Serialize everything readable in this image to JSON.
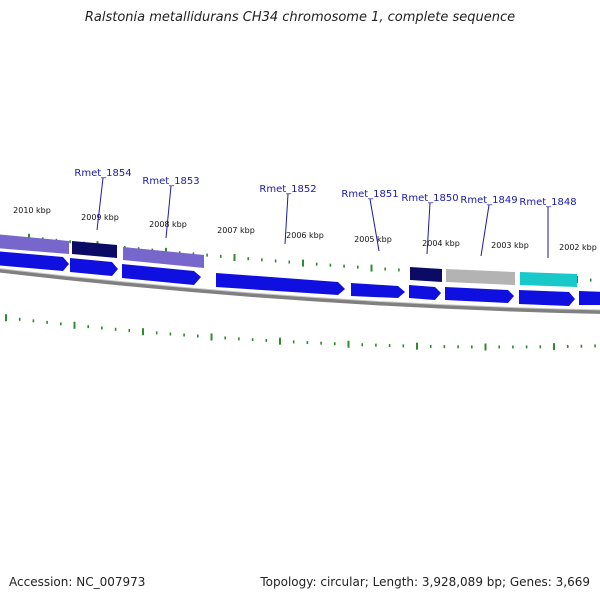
{
  "title": "Ralstonia metallidurans CH34 chromosome 1, complete sequence",
  "footer": {
    "accession": "Accession: NC_007973",
    "summary": "Topology: circular; Length: 3,928,089 bp; Genes: 3,669"
  },
  "colors": {
    "backbone": "#808080",
    "tick": "#2e8b2e",
    "label_line": "#1a1aa8",
    "blue": "#0f0fe0",
    "lavender": "#7766cc",
    "navy": "#0b0b66",
    "gray": "#b3b3b3",
    "cyan": "#19c8c8"
  },
  "kbp_labels": [
    "2010 kbp",
    "2009 kbp",
    "2008 kbp",
    "2007 kbp",
    "2006 kbp",
    "2005 kbp",
    "2004 kbp",
    "2003 kbp",
    "2002 kbp"
  ],
  "gene_labels": [
    "Rmet_1854",
    "Rmet_1853",
    "Rmet_1852",
    "Rmet_1851",
    "Rmet_1850",
    "Rmet_1849",
    "Rmet_1848"
  ]
}
